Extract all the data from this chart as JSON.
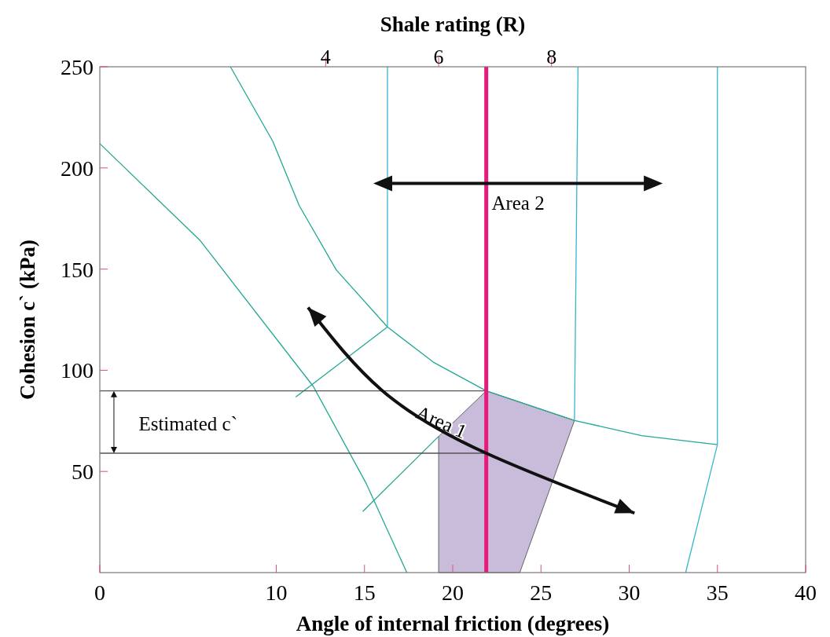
{
  "chart_data": {
    "type": "line",
    "xlabel": "Angle of internal friction (degrees)",
    "ylabel": "Cohesion c` (kPa)",
    "x2label": "Shale rating (R)",
    "xlim": [
      0,
      40
    ],
    "xticks": [
      0,
      10,
      15,
      20,
      25,
      30,
      35,
      40
    ],
    "ylim": [
      0,
      250
    ],
    "yticks": [
      50,
      100,
      150,
      200,
      250
    ],
    "x2lim": [
      0,
      12.5
    ],
    "x2ticks": [
      4,
      6,
      8
    ],
    "grid": false,
    "series": [
      {
        "type": "area",
        "color": "#c8bcda",
        "x": [
          19.2,
          19.2,
          21.9,
          26.9,
          23.8
        ],
        "values": [
          0,
          67.3,
          89.8,
          75.2,
          0
        ]
      },
      {
        "color": "#22a894",
        "x": [
          0,
          5.7,
          12.1,
          15.1,
          17.4
        ],
        "values": [
          212,
          164,
          92,
          44,
          0
        ]
      },
      {
        "color": "#22a894",
        "x": [
          7.4,
          9.8,
          11.3,
          13.4,
          16.3,
          18.9,
          21.9,
          26.9,
          30.7,
          35
        ],
        "values": [
          250,
          213.2,
          181.4,
          149.6,
          121.4,
          104,
          89.8,
          75.2,
          67.7,
          63.2
        ]
      },
      {
        "color": "#38b6cf",
        "x": [
          16.3,
          16.3
        ],
        "values": [
          250,
          121.4
        ]
      },
      {
        "color": "#38b6cf",
        "x": [
          27.1,
          26.9
        ],
        "values": [
          250,
          75.2
        ]
      },
      {
        "color": "#38b6cf",
        "x": [
          35,
          35,
          33.2
        ],
        "values": [
          250,
          63.2,
          0
        ]
      },
      {
        "color": "#22a894",
        "x": [
          16.3,
          11.1
        ],
        "values": [
          121.4,
          86.8
        ]
      },
      {
        "color": "#22a894",
        "x": [
          19.2,
          14.9
        ],
        "values": [
          67.3,
          30.2
        ]
      },
      {
        "color": "#555555",
        "x": [
          0,
          21.9
        ],
        "values": [
          89.8,
          89.8
        ]
      },
      {
        "color": "#555555",
        "x": [
          0,
          21.9
        ],
        "values": [
          59,
          59
        ]
      }
    ],
    "ref_lines": [
      {
        "axis": "x",
        "value": 21.9,
        "label": null,
        "color": "#e8197b"
      }
    ],
    "annotations": [
      {
        "text": "Area 2",
        "x": 22.2,
        "y": 183
      },
      "Area 1",
      "Estimated c`"
    ]
  }
}
